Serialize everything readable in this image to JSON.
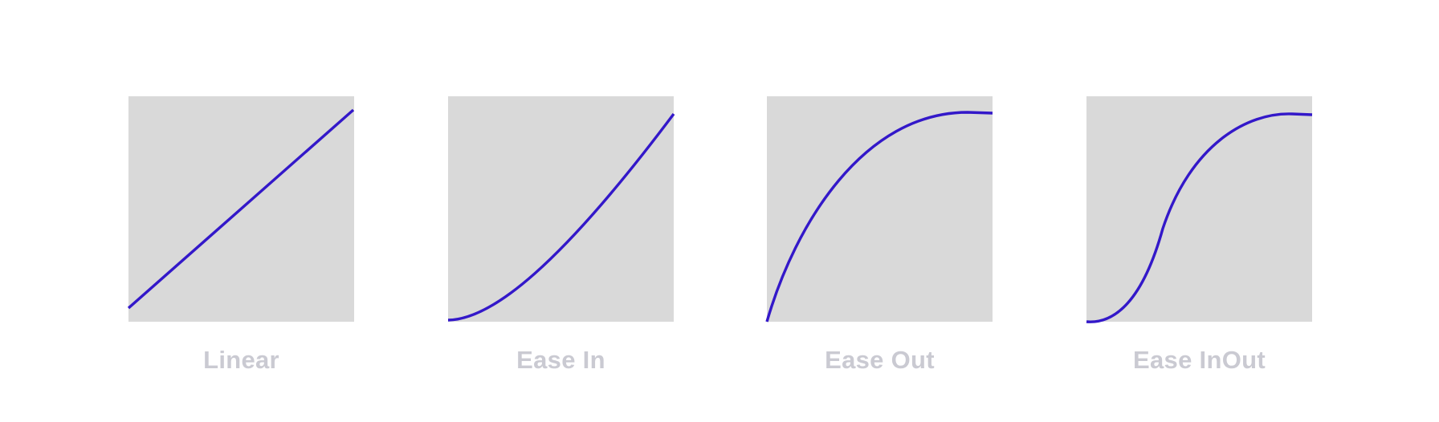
{
  "colors": {
    "curve": "#3318c9",
    "label": "#cacad2",
    "box": "#d9d9d9",
    "background": "#ffffff"
  },
  "curves": [
    {
      "label": "Linear",
      "easing": "linear",
      "cubic_bezier": [
        0,
        0,
        1,
        1
      ]
    },
    {
      "label": "Ease In",
      "easing": "ease-in",
      "cubic_bezier": [
        0.42,
        0,
        1,
        1
      ]
    },
    {
      "label": "Ease Out",
      "easing": "ease-out",
      "cubic_bezier": [
        0,
        0,
        0.58,
        1
      ]
    },
    {
      "label": "Ease InOut",
      "easing": "ease-in-out",
      "cubic_bezier": [
        0.42,
        0,
        0.58,
        1
      ]
    }
  ]
}
